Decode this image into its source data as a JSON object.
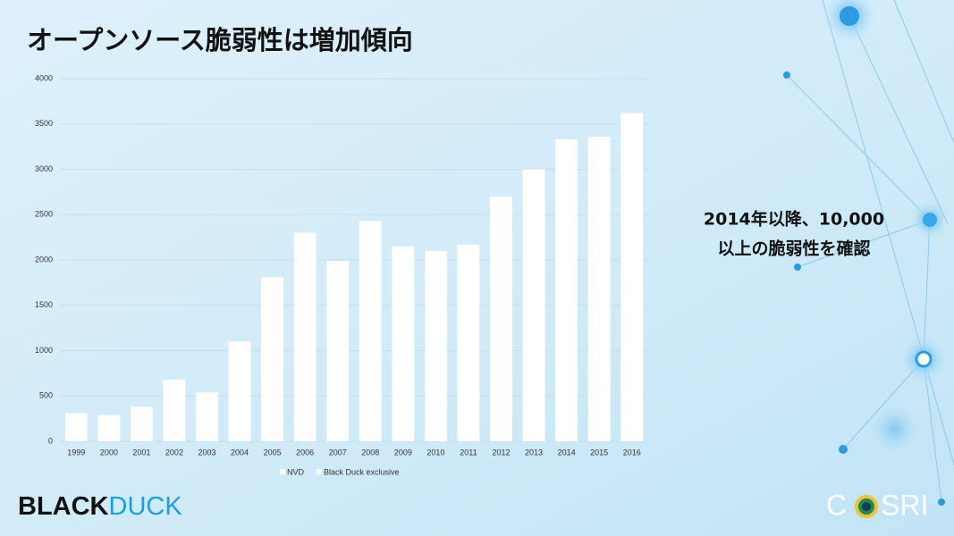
{
  "chart_data": {
    "type": "bar",
    "title": "オープンソース脆弱性は増加傾向",
    "categories": [
      "1999",
      "2000",
      "2001",
      "2002",
      "2003",
      "2004",
      "2005",
      "2006",
      "2007",
      "2008",
      "2009",
      "2010",
      "2011",
      "2012",
      "2013",
      "2014",
      "2015",
      "2016"
    ],
    "series": [
      {
        "name": "NVD",
        "color": "#ffffff",
        "values": [
          310,
          290,
          380,
          680,
          540,
          1100,
          1810,
          2300,
          1990,
          2430,
          2150,
          2100,
          2170,
          2700,
          3000,
          3330,
          3360,
          3620
        ]
      },
      {
        "name": "Black Duck exclusive",
        "color": "#ffffff",
        "values": [
          null,
          null,
          null,
          null,
          null,
          null,
          null,
          null,
          null,
          null,
          null,
          null,
          null,
          null,
          null,
          null,
          null,
          null
        ]
      }
    ],
    "ylim": [
      0,
      4000
    ],
    "yticks": [
      0,
      500,
      1000,
      1500,
      2000,
      2500,
      3000,
      3500,
      4000
    ],
    "grid": true,
    "annotation": [
      "2014年以降、10,000",
      "以上の脆弱性を確認"
    ]
  },
  "logos": {
    "left_bold": "BLACK",
    "left_light": "DUCK",
    "right_start": "C",
    "right_end": "SRI"
  }
}
